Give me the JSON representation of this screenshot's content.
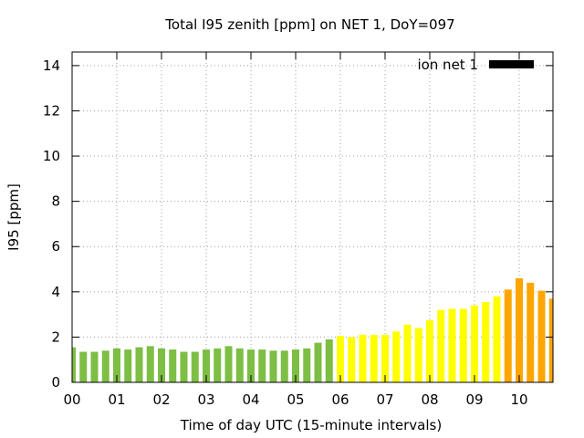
{
  "chart_data": {
    "type": "bar",
    "title": "Total I95 zenith [ppm] on NET 1, DoY=097",
    "xlabel": "Time of day UTC (15-minute intervals)",
    "ylabel": "I95 [ppm]",
    "ylim": [
      0,
      14.6
    ],
    "yticks": [
      0,
      2,
      4,
      6,
      8,
      10,
      12,
      14
    ],
    "xlim": [
      0,
      10.75
    ],
    "xticks": [
      "00",
      "01",
      "02",
      "03",
      "04",
      "05",
      "06",
      "07",
      "08",
      "09",
      "10"
    ],
    "grid": true,
    "legend": {
      "position": "top-right",
      "label": "ion net 1",
      "color": "#000000"
    },
    "bar_colors": {
      "low": "#7dbe44",
      "medium": "#ffff00",
      "high": "#ffa500"
    },
    "series": [
      {
        "name": "ion net 1",
        "x": [
          0.0,
          0.25,
          0.5,
          0.75,
          1.0,
          1.25,
          1.5,
          1.75,
          2.0,
          2.25,
          2.5,
          2.75,
          3.0,
          3.25,
          3.5,
          3.75,
          4.0,
          4.25,
          4.5,
          4.75,
          5.0,
          5.25,
          5.5,
          5.75,
          6.0,
          6.25,
          6.5,
          6.75,
          7.0,
          7.25,
          7.5,
          7.75,
          8.0,
          8.25,
          8.5,
          8.75,
          9.0,
          9.25,
          9.5,
          9.75,
          10.0,
          10.25,
          10.5,
          10.75
        ],
        "values": [
          1.55,
          1.35,
          1.35,
          1.4,
          1.5,
          1.45,
          1.55,
          1.6,
          1.5,
          1.45,
          1.35,
          1.35,
          1.45,
          1.5,
          1.6,
          1.5,
          1.45,
          1.45,
          1.4,
          1.4,
          1.45,
          1.5,
          1.75,
          1.9,
          2.05,
          2.0,
          2.1,
          2.1,
          2.1,
          2.25,
          2.55,
          2.4,
          2.75,
          3.2,
          3.25,
          3.25,
          3.4,
          3.55,
          3.8,
          4.1,
          4.6,
          4.4,
          4.05,
          3.7
        ],
        "levels": [
          "low",
          "low",
          "low",
          "low",
          "low",
          "low",
          "low",
          "low",
          "low",
          "low",
          "low",
          "low",
          "low",
          "low",
          "low",
          "low",
          "low",
          "low",
          "low",
          "low",
          "low",
          "low",
          "low",
          "low",
          "medium",
          "medium",
          "medium",
          "medium",
          "medium",
          "medium",
          "medium",
          "medium",
          "medium",
          "medium",
          "medium",
          "medium",
          "medium",
          "medium",
          "medium",
          "high",
          "high",
          "high",
          "high",
          "high"
        ]
      }
    ]
  }
}
